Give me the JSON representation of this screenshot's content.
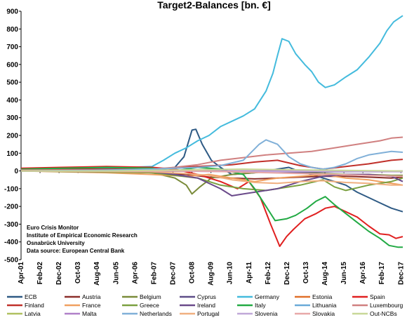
{
  "chart_data": {
    "type": "line",
    "title": "Target2-Balances [bn. €]",
    "xlabel": "",
    "ylabel": "",
    "ylim": [
      -500,
      900
    ],
    "yticks": [
      -500,
      -400,
      -300,
      -200,
      -100,
      0,
      100,
      200,
      300,
      400,
      500,
      600,
      700,
      800,
      900
    ],
    "xlim": [
      2001.25,
      2018.0
    ],
    "x_tick_labels": [
      "Apr-01",
      "Feb-02",
      "Dec-02",
      "Oct-03",
      "Aug-04",
      "Jun-05",
      "Apr-06",
      "Feb-07",
      "Dec-07",
      "Oct-08",
      "Aug-09",
      "Jun-10",
      "Apr-11",
      "Feb-12",
      "Dec-12",
      "Oct-13",
      "Aug-14",
      "Jun-15",
      "Apr-16",
      "Feb-17",
      "Dec-17"
    ],
    "x_tick_values": [
      2001.25,
      2002.083,
      2002.917,
      2003.75,
      2004.583,
      2005.417,
      2006.25,
      2007.083,
      2007.917,
      2008.75,
      2009.583,
      2010.417,
      2011.25,
      2012.083,
      2012.917,
      2013.75,
      2014.583,
      2015.417,
      2016.25,
      2017.083,
      2017.917
    ],
    "grid": false,
    "legend_position": "bottom",
    "annotation": [
      "Euro Crisis Monitor",
      "Institute of Empirical Economic Research",
      "Osnabrück University",
      "Data source: European Central Bank"
    ],
    "series": [
      {
        "name": "ECB",
        "color": "#2e5a84",
        "x": [
          2001.25,
          2007.0,
          2008.0,
          2008.4,
          2008.75,
          2008.92,
          2009.2,
          2009.6,
          2010.0,
          2010.5,
          2011.0,
          2011.5,
          2012.0,
          2012.5,
          2013.0,
          2013.5,
          2014.0,
          2014.5,
          2015.0,
          2015.5,
          2016.0,
          2016.5,
          2017.0,
          2017.5,
          2018.0
        ],
        "values": [
          5,
          5,
          20,
          80,
          230,
          235,
          150,
          60,
          20,
          -20,
          -15,
          -10,
          0,
          10,
          20,
          -5,
          -20,
          -40,
          -60,
          -80,
          -120,
          -150,
          -180,
          -210,
          -230
        ]
      },
      {
        "name": "Austria",
        "color": "#8b2f2b",
        "x": [
          2001.25,
          2005.0,
          2007.0,
          2008.5,
          2009.5,
          2010.5,
          2011.5,
          2012.5,
          2013.5,
          2014.5,
          2015.5,
          2016.5,
          2017.5,
          2018.0
        ],
        "values": [
          0,
          -5,
          -10,
          -20,
          -35,
          -40,
          -45,
          -40,
          -35,
          -30,
          -30,
          -35,
          -40,
          -35
        ]
      },
      {
        "name": "Belgium",
        "color": "#7a8b3a",
        "x": [
          2001.25,
          2005.0,
          2007.0,
          2008.0,
          2008.5,
          2008.75,
          2009.1,
          2009.6,
          2010.5,
          2011.5,
          2012.5,
          2013.5,
          2014.5,
          2015.5,
          2016.5,
          2017.5,
          2018.0
        ],
        "values": [
          5,
          0,
          -10,
          -40,
          -80,
          -130,
          -90,
          -40,
          -20,
          -10,
          0,
          -10,
          -15,
          -20,
          -20,
          -25,
          -25
        ]
      },
      {
        "name": "Cyprus",
        "color": "#5e4e88",
        "x": [
          2001.25,
          2007.0,
          2010.0,
          2012.0,
          2013.0,
          2014.0,
          2015.0,
          2016.0,
          2017.0,
          2018.0
        ],
        "values": [
          0,
          0,
          -3,
          -5,
          -8,
          -6,
          -5,
          -4,
          -4,
          -3
        ]
      },
      {
        "name": "Germany",
        "color": "#44bbdd",
        "x": [
          2001.25,
          2002.0,
          2004.0,
          2006.0,
          2007.0,
          2007.5,
          2008.0,
          2008.5,
          2009.0,
          2009.5,
          2010.0,
          2010.5,
          2011.0,
          2011.5,
          2012.0,
          2012.3,
          2012.5,
          2012.7,
          2013.0,
          2013.3,
          2013.7,
          2014.0,
          2014.3,
          2014.6,
          2015.0,
          2015.5,
          2016.0,
          2016.5,
          2017.0,
          2017.3,
          2017.6,
          2018.0
        ],
        "values": [
          0,
          5,
          10,
          20,
          25,
          60,
          100,
          130,
          170,
          200,
          250,
          280,
          310,
          350,
          450,
          550,
          650,
          745,
          730,
          660,
          600,
          560,
          500,
          470,
          485,
          530,
          570,
          640,
          720,
          790,
          840,
          875
        ]
      },
      {
        "name": "Estonia",
        "color": "#e0702a",
        "x": [
          2001.25,
          2011.0,
          2018.0
        ],
        "values": [
          0,
          0,
          0
        ]
      },
      {
        "name": "Spain",
        "color": "#e02020",
        "x": [
          2001.25,
          2003.0,
          2005.0,
          2007.0,
          2008.0,
          2009.0,
          2010.0,
          2010.75,
          2011.25,
          2011.75,
          2012.2,
          2012.6,
          2012.9,
          2013.2,
          2013.7,
          2014.2,
          2014.6,
          2015.0,
          2015.5,
          2016.0,
          2016.5,
          2017.0,
          2017.4,
          2017.7,
          2018.0
        ],
        "values": [
          15,
          20,
          25,
          20,
          10,
          -20,
          -60,
          -100,
          -60,
          -150,
          -300,
          -425,
          -370,
          -330,
          -270,
          -240,
          -210,
          -200,
          -230,
          -260,
          -310,
          -355,
          -360,
          -380,
          -370
        ]
      },
      {
        "name": "Finland",
        "color": "#c0302a",
        "x": [
          2001.25,
          2007.0,
          2009.0,
          2010.5,
          2011.5,
          2012.5,
          2013.5,
          2014.5,
          2015.5,
          2016.5,
          2017.5,
          2018.0
        ],
        "values": [
          10,
          10,
          25,
          35,
          50,
          60,
          30,
          10,
          25,
          40,
          60,
          65
        ]
      },
      {
        "name": "France",
        "color": "#f0a060",
        "x": [
          2001.25,
          2005.0,
          2007.0,
          2008.5,
          2009.5,
          2010.5,
          2011.5,
          2012.5,
          2013.5,
          2014.5,
          2015.5,
          2016.5,
          2017.5,
          2018.0
        ],
        "values": [
          0,
          -10,
          -20,
          -30,
          -20,
          -40,
          -60,
          -40,
          -30,
          -20,
          -40,
          -50,
          -70,
          -80
        ]
      },
      {
        "name": "Greece",
        "color": "#7aa040",
        "x": [
          2001.25,
          2007.0,
          2008.0,
          2009.0,
          2010.0,
          2011.0,
          2012.0,
          2012.5,
          2013.5,
          2014.5,
          2015.0,
          2015.5,
          2016.5,
          2017.5,
          2018.0
        ],
        "values": [
          0,
          -10,
          -25,
          -40,
          -80,
          -100,
          -110,
          -100,
          -80,
          -50,
          -90,
          -110,
          -80,
          -60,
          -40
        ]
      },
      {
        "name": "Ireland",
        "color": "#6a4a8a",
        "x": [
          2001.25,
          2007.0,
          2008.0,
          2009.0,
          2010.0,
          2010.5,
          2011.0,
          2012.0,
          2012.5,
          2013.5,
          2014.5,
          2015.5,
          2016.5,
          2017.5,
          2018.0
        ],
        "values": [
          0,
          -5,
          -20,
          -40,
          -100,
          -140,
          -130,
          -110,
          -100,
          -60,
          -30,
          -20,
          -20,
          -30,
          -60
        ]
      },
      {
        "name": "Italy",
        "color": "#22aa44",
        "x": [
          2001.25,
          2003.0,
          2005.0,
          2007.0,
          2008.0,
          2009.0,
          2010.0,
          2011.0,
          2011.5,
          2012.0,
          2012.4,
          2012.9,
          2013.3,
          2013.8,
          2014.2,
          2014.6,
          2015.0,
          2015.5,
          2016.0,
          2016.5,
          2017.0,
          2017.4,
          2017.8,
          2018.0
        ],
        "values": [
          10,
          15,
          20,
          15,
          0,
          20,
          10,
          -20,
          -100,
          -200,
          -280,
          -270,
          -250,
          -210,
          -170,
          -145,
          -190,
          -240,
          -290,
          -340,
          -380,
          -420,
          -430,
          -430
        ]
      },
      {
        "name": "Lithuania",
        "color": "#6aaad8",
        "x": [
          2001.25,
          2012.0,
          2018.0
        ],
        "values": [
          0,
          0,
          0
        ]
      },
      {
        "name": "Luxembourg",
        "color": "#d08080",
        "x": [
          2001.25,
          2005.0,
          2007.0,
          2008.0,
          2009.0,
          2010.0,
          2011.0,
          2012.0,
          2013.0,
          2014.0,
          2015.0,
          2016.0,
          2017.0,
          2017.5,
          2018.0
        ],
        "values": [
          5,
          5,
          10,
          20,
          35,
          60,
          75,
          90,
          100,
          110,
          130,
          150,
          170,
          185,
          190
        ]
      },
      {
        "name": "Latvia",
        "color": "#b0c060",
        "x": [
          2001.25,
          2014.0,
          2018.0
        ],
        "values": [
          0,
          0,
          -2
        ]
      },
      {
        "name": "Malta",
        "color": "#b080c8",
        "x": [
          2001.25,
          2008.0,
          2018.0
        ],
        "values": [
          0,
          0,
          0
        ]
      },
      {
        "name": "Netherlands",
        "color": "#80b0d8",
        "x": [
          2001.25,
          2005.0,
          2007.0,
          2008.0,
          2009.0,
          2010.0,
          2011.0,
          2011.7,
          2012.0,
          2012.5,
          2013.0,
          2013.5,
          2014.0,
          2014.5,
          2015.0,
          2015.5,
          2016.0,
          2016.5,
          2017.0,
          2017.5,
          2018.0
        ],
        "values": [
          0,
          5,
          10,
          15,
          20,
          30,
          60,
          150,
          175,
          150,
          80,
          40,
          20,
          10,
          20,
          40,
          70,
          90,
          100,
          110,
          105
        ]
      },
      {
        "name": "Portugal",
        "color": "#f0b080",
        "x": [
          2001.25,
          2007.0,
          2008.5,
          2009.5,
          2010.5,
          2011.5,
          2012.5,
          2013.5,
          2014.5,
          2015.5,
          2016.5,
          2017.5,
          2018.0
        ],
        "values": [
          0,
          -5,
          -15,
          -25,
          -50,
          -65,
          -70,
          -60,
          -55,
          -65,
          -70,
          -80,
          -80
        ]
      },
      {
        "name": "Slovenia",
        "color": "#c0a8d8",
        "x": [
          2001.25,
          2008.0,
          2011.0,
          2014.0,
          2018.0
        ],
        "values": [
          0,
          0,
          -5,
          -3,
          -5
        ]
      },
      {
        "name": "Slovakia",
        "color": "#e8a8a8",
        "x": [
          2001.25,
          2009.0,
          2012.0,
          2015.0,
          2018.0
        ],
        "values": [
          0,
          0,
          -10,
          -20,
          -30
        ]
      },
      {
        "name": "Out-NCBs",
        "color": "#c8d898",
        "x": [
          2001.25,
          2005.0,
          2008.0,
          2011.0,
          2014.0,
          2018.0
        ],
        "values": [
          0,
          0,
          5,
          10,
          5,
          0
        ]
      }
    ]
  }
}
